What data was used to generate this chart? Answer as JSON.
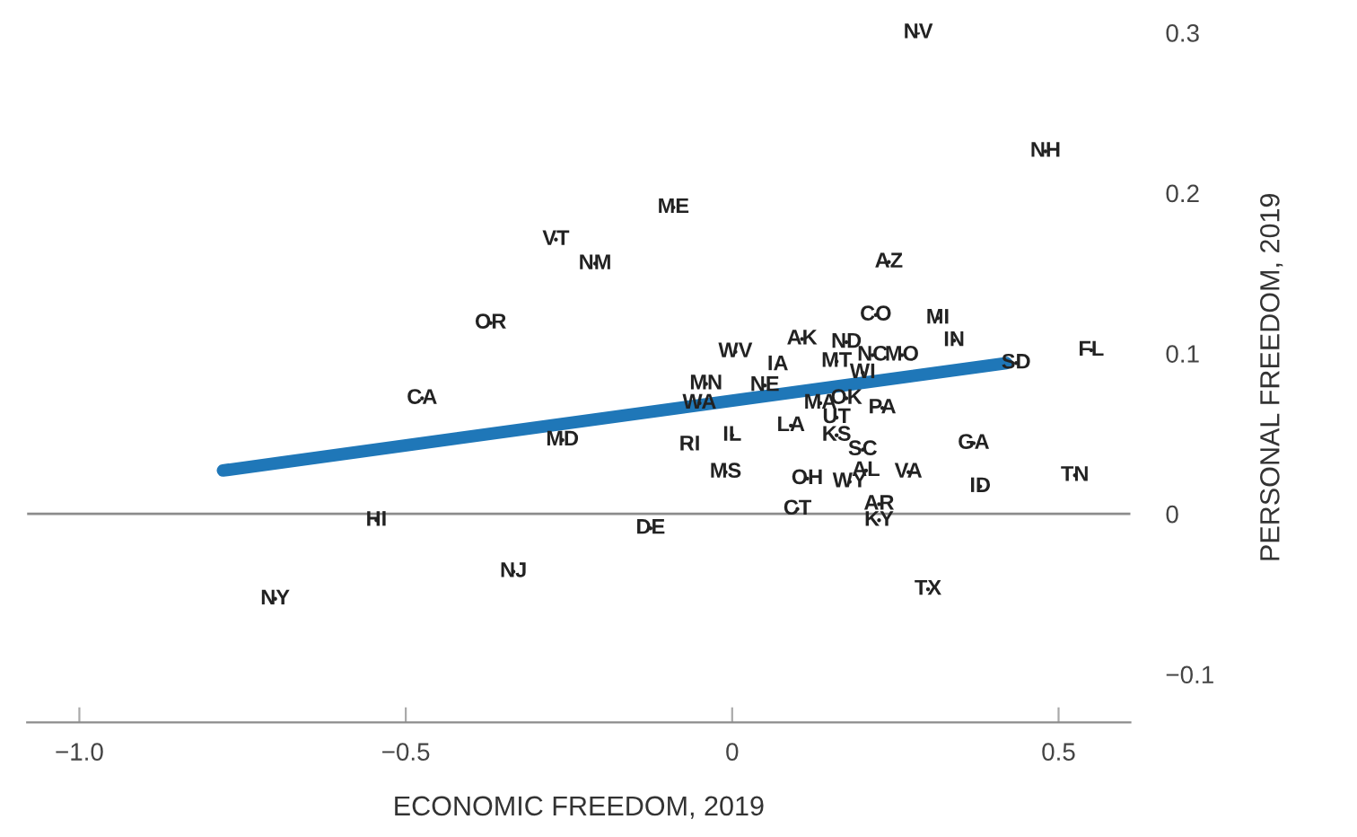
{
  "chart_data": {
    "type": "scatter",
    "xlabel": "ECONOMIC FREEDOM, 2019",
    "ylabel": "PERSONAL FREEDOM, 2019",
    "xlim": [
      -1.08,
      0.61
    ],
    "ylim": [
      -0.13,
      0.3
    ],
    "xticks": [
      {
        "value": -1.0,
        "label": "−1.0"
      },
      {
        "value": -0.5,
        "label": "−0.5"
      },
      0,
      0.5
    ],
    "yticks": [
      {
        "value": -0.1,
        "label": "−0.1"
      },
      0,
      0.1,
      0.2,
      0.3
    ],
    "grid": false,
    "marker": "none",
    "ref_lines": [
      {
        "axis": "y",
        "value": 0,
        "color": "#8c8c8c"
      }
    ],
    "series": [
      {
        "color": "#222222",
        "x": [
          0.285,
          0.48,
          -0.09,
          -0.27,
          -0.21,
          0.24,
          -0.37,
          0.22,
          0.315,
          0.34,
          0.005,
          0.107,
          0.07,
          0.175,
          0.16,
          0.215,
          0.26,
          0.435,
          0.55,
          -0.475,
          -0.04,
          0.05,
          -0.05,
          0.2,
          0.135,
          0.175,
          0.23,
          0.16,
          0.09,
          0.0,
          0.16,
          -0.065,
          -0.26,
          0.2,
          0.37,
          -0.01,
          0.115,
          0.205,
          0.18,
          0.27,
          0.38,
          0.525,
          0.1,
          0.225,
          0.225,
          -0.545,
          -0.125,
          -0.335,
          -0.7,
          0.3
        ],
        "values": [
          0.3,
          0.226,
          0.191,
          0.171,
          0.156,
          0.157,
          0.119,
          0.124,
          0.122,
          0.108,
          0.101,
          0.109,
          0.093,
          0.107,
          0.095,
          0.099,
          0.099,
          0.094,
          0.102,
          0.072,
          0.081,
          0.08,
          0.069,
          0.088,
          0.069,
          0.072,
          0.066,
          0.06,
          0.055,
          0.049,
          0.049,
          0.043,
          0.046,
          0.04,
          0.044,
          0.026,
          0.022,
          0.027,
          0.02,
          0.026,
          0.017,
          0.024,
          0.003,
          0.006,
          -0.004,
          -0.004,
          -0.009,
          -0.036,
          -0.053,
          -0.047
        ],
        "value_labels": [
          "NV",
          "NH",
          "ME",
          "VT",
          "NM",
          "AZ",
          "OR",
          "CO",
          "MI",
          "IN",
          "WV",
          "AK",
          "IA",
          "ND",
          "MT",
          "NC",
          "MO",
          "SD",
          "FL",
          "CA",
          "MN",
          "NE",
          "WA",
          "WI",
          "MA",
          "OK",
          "PA",
          "UT",
          "LA",
          "IL",
          "KS",
          "RI",
          "MD",
          "SC",
          "GA",
          "MS",
          "OH",
          "AL",
          "WY",
          "VA",
          "ID",
          "TN",
          "CT",
          "AR",
          "KY",
          "HI",
          "DE",
          "NJ",
          "NY",
          "TX"
        ]
      },
      {
        "type": "line",
        "color": "#1f77b8",
        "x": [
          -0.78,
          0.42
        ],
        "values": [
          0.027,
          0.094
        ]
      }
    ]
  }
}
